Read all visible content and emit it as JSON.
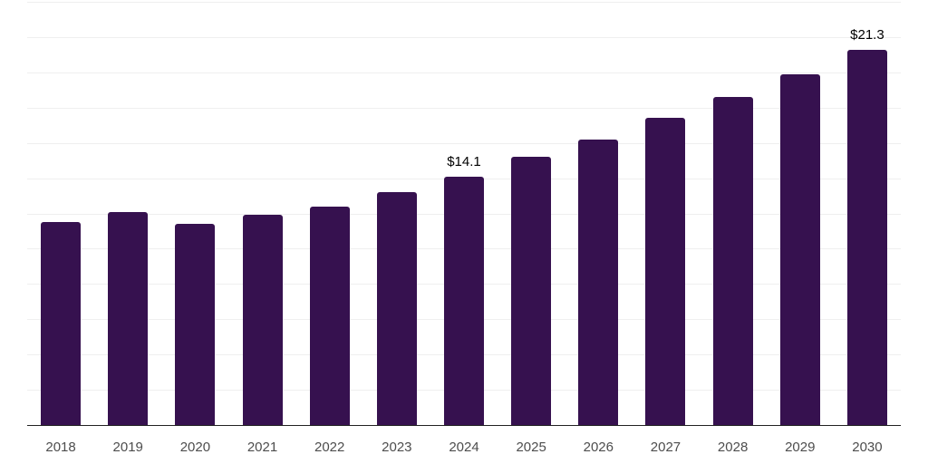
{
  "chart_data": {
    "type": "bar",
    "title": "",
    "xlabel": "",
    "ylabel": "",
    "categories": [
      "2018",
      "2019",
      "2020",
      "2021",
      "2022",
      "2023",
      "2024",
      "2025",
      "2026",
      "2027",
      "2028",
      "2029",
      "2030"
    ],
    "values": [
      11.5,
      12.1,
      11.4,
      11.9,
      12.4,
      13.2,
      14.1,
      15.2,
      16.2,
      17.4,
      18.6,
      19.9,
      21.3
    ],
    "data_labels": [
      "",
      "",
      "",
      "",
      "",
      "",
      "$14.1",
      "",
      "",
      "",
      "",
      "",
      "$21.3"
    ],
    "ylim": [
      0,
      24
    ],
    "gridline_step": 2,
    "grid": "horizontal",
    "y_tick_labels_shown": false,
    "legend_position": "none",
    "colors": {
      "bar": "#36114f",
      "grid": "#efefef",
      "axis": "#222222",
      "tick_label": "#4d4d4d",
      "value_label": "#000000",
      "background": "#ffffff"
    }
  }
}
